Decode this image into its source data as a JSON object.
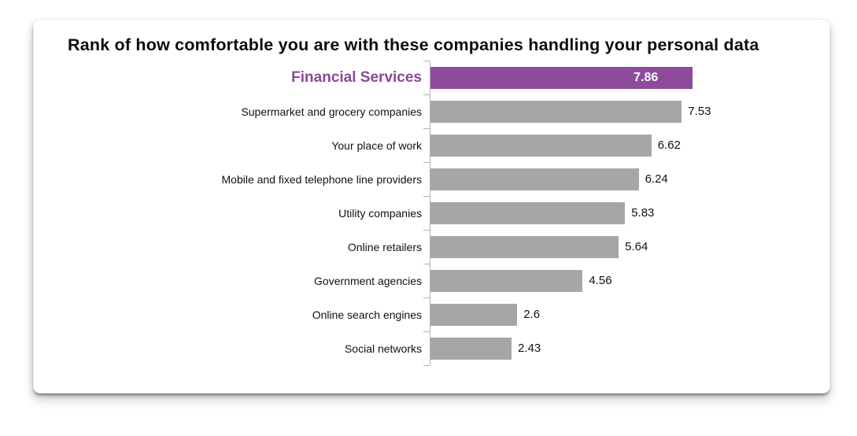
{
  "card": {
    "title": "Rank of how comfortable you are with these companies handling your personal data"
  },
  "chart_data": {
    "type": "bar",
    "orientation": "horizontal",
    "title": "Rank of how comfortable you are with these companies handling your personal data",
    "categories": [
      "Financial Services",
      "Supermarket and grocery companies",
      "Your place of work",
      "Mobile and fixed telephone line providers",
      "Utility companies",
      "Online retailers",
      "Government agencies",
      "Online search engines",
      "Social networks"
    ],
    "values": [
      7.86,
      7.53,
      6.62,
      6.24,
      5.83,
      5.64,
      4.56,
      2.6,
      2.43
    ],
    "value_labels": [
      "7.86",
      "7.53",
      "6.62",
      "6.24",
      "5.83",
      "5.64",
      "4.56",
      "2.6",
      "2.43"
    ],
    "xlabel": "",
    "ylabel": "",
    "xlim": [
      0,
      10
    ],
    "grid": false,
    "legend": "none",
    "highlight_index": 0,
    "value_label_position": {
      "highlighted": "inside-right",
      "default": "outside-right"
    },
    "colors": {
      "highlight_bar": "#8e4b9c",
      "highlight_label": "#8c4799",
      "bar": "#a6a6a6",
      "value_in_bar": "#ffffff",
      "axis": "#b3b3b3",
      "text": "#111111",
      "title": "#0d0d0d",
      "card_background": "#ffffff"
    }
  }
}
